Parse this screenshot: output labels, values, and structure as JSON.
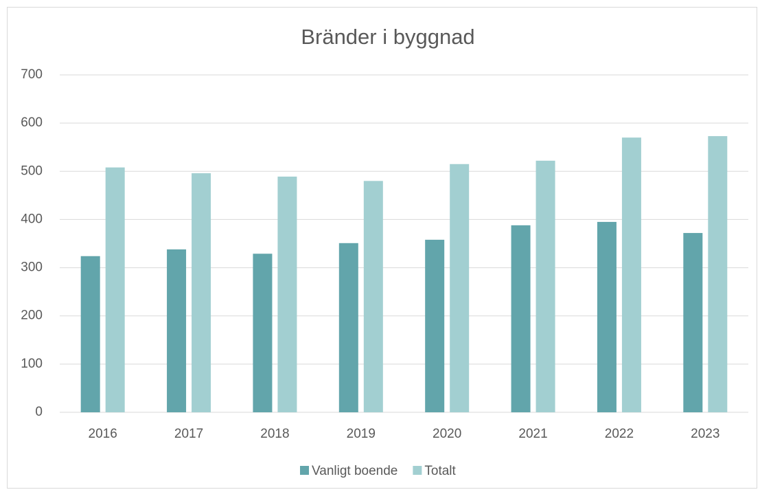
{
  "chart_data": {
    "type": "bar",
    "title": "Bränder i byggnad",
    "categories": [
      "2016",
      "2017",
      "2018",
      "2019",
      "2020",
      "2021",
      "2022",
      "2023"
    ],
    "series": [
      {
        "name": "Vanligt boende",
        "color": "#62a5ab",
        "values": [
          324,
          338,
          329,
          351,
          358,
          388,
          395,
          372
        ]
      },
      {
        "name": "Totalt",
        "color": "#a2cfd1",
        "values": [
          508,
          496,
          489,
          480,
          515,
          522,
          570,
          573
        ]
      }
    ],
    "ylim": [
      0,
      700
    ],
    "yticks": [
      0,
      100,
      200,
      300,
      400,
      500,
      600,
      700
    ],
    "grid": true,
    "legend": "bottom"
  }
}
